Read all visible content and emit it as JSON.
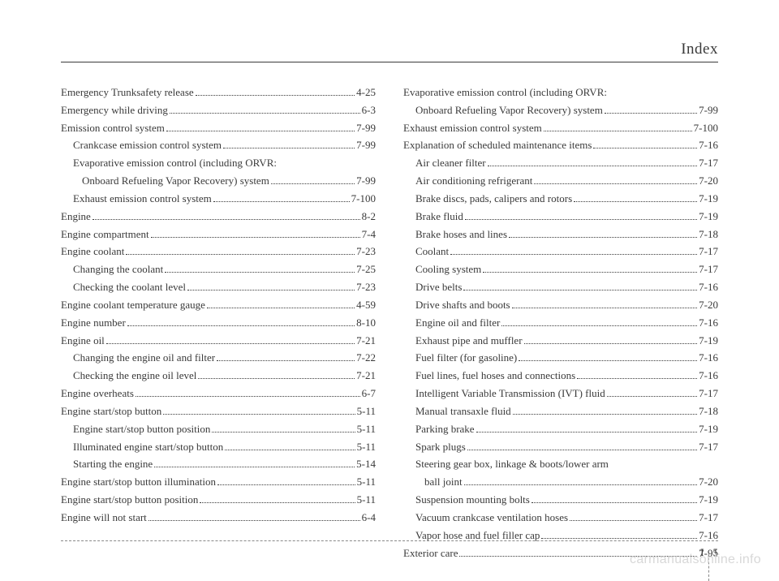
{
  "header": {
    "title": "Index"
  },
  "footer": {
    "section": "I",
    "page": "5"
  },
  "watermark": "carmanualsonline.info",
  "left": [
    {
      "label": "Emergency Trunksafety release",
      "page": "4-25",
      "indent": 0
    },
    {
      "label": "Emergency while driving",
      "page": "6-3",
      "indent": 0
    },
    {
      "label": "Emission control system",
      "page": "7-99",
      "indent": 0
    },
    {
      "label": "Crankcase emission control system",
      "page": "7-99",
      "indent": 1
    },
    {
      "label": "Evaporative emission control (including ORVR:",
      "page": "",
      "indent": 1
    },
    {
      "label": "Onboard Refueling Vapor Recovery) system",
      "page": "7-99",
      "indent": 2
    },
    {
      "label": "Exhaust emission control system",
      "page": "7-100",
      "indent": 1
    },
    {
      "label": "Engine",
      "page": "8-2",
      "indent": 0
    },
    {
      "label": "Engine compartment",
      "page": "7-4",
      "indent": 0
    },
    {
      "label": "Engine coolant",
      "page": "7-23",
      "indent": 0
    },
    {
      "label": "Changing the coolant",
      "page": "7-25",
      "indent": 1
    },
    {
      "label": "Checking the coolant level",
      "page": "7-23",
      "indent": 1
    },
    {
      "label": "Engine coolant temperature gauge",
      "page": "4-59",
      "indent": 0
    },
    {
      "label": "Engine number",
      "page": "8-10",
      "indent": 0
    },
    {
      "label": "Engine oil",
      "page": "7-21",
      "indent": 0
    },
    {
      "label": "Changing the engine oil and filter",
      "page": "7-22",
      "indent": 1
    },
    {
      "label": "Checking the engine oil level",
      "page": "7-21",
      "indent": 1
    },
    {
      "label": "Engine overheats",
      "page": "6-7",
      "indent": 0
    },
    {
      "label": "Engine start/stop button",
      "page": "5-11",
      "indent": 0
    },
    {
      "label": "Engine start/stop button position",
      "page": "5-11",
      "indent": 1
    },
    {
      "label": "Illuminated engine start/stop button",
      "page": "5-11",
      "indent": 1
    },
    {
      "label": "Starting the engine",
      "page": "5-14",
      "indent": 1
    },
    {
      "label": "Engine start/stop button illumination",
      "page": "5-11",
      "indent": 0
    },
    {
      "label": "Engine start/stop button position",
      "page": "5-11",
      "indent": 0
    },
    {
      "label": "Engine will not start",
      "page": "6-4",
      "indent": 0
    }
  ],
  "right": [
    {
      "label": "Evaporative emission control (including ORVR:",
      "page": "",
      "indent": 0
    },
    {
      "label": "Onboard Refueling Vapor Recovery) system",
      "page": "7-99",
      "indent": 1
    },
    {
      "label": "Exhaust emission control system",
      "page": "7-100",
      "indent": 0
    },
    {
      "label": "Explanation of scheduled maintenance items",
      "page": "7-16",
      "indent": 0
    },
    {
      "label": "Air cleaner filter",
      "page": "7-17",
      "indent": 1
    },
    {
      "label": "Air conditioning refrigerant",
      "page": "7-20",
      "indent": 1
    },
    {
      "label": "Brake discs, pads, calipers and rotors",
      "page": "7-19",
      "indent": 1
    },
    {
      "label": "Brake fluid",
      "page": "7-19",
      "indent": 1
    },
    {
      "label": "Brake hoses and lines",
      "page": "7-18",
      "indent": 1
    },
    {
      "label": "Coolant",
      "page": "7-17",
      "indent": 1
    },
    {
      "label": "Cooling system",
      "page": "7-17",
      "indent": 1
    },
    {
      "label": "Drive belts",
      "page": "7-16",
      "indent": 1
    },
    {
      "label": "Drive shafts and boots",
      "page": "7-20",
      "indent": 1
    },
    {
      "label": "Engine oil and filter",
      "page": "7-16",
      "indent": 1
    },
    {
      "label": "Exhaust pipe and muffler",
      "page": "7-19",
      "indent": 1
    },
    {
      "label": "Fuel filter (for gasoline)",
      "page": "7-16",
      "indent": 1
    },
    {
      "label": "Fuel lines, fuel hoses and connections",
      "page": "7-16",
      "indent": 1
    },
    {
      "label": "Intelligent Variable Transmission (IVT) fluid",
      "page": "7-17",
      "indent": 1
    },
    {
      "label": "Manual transaxle fluid",
      "page": "7-18",
      "indent": 1
    },
    {
      "label": "Parking brake",
      "page": "7-19",
      "indent": 1
    },
    {
      "label": "Spark plugs",
      "page": "7-17",
      "indent": 1
    },
    {
      "label": "Steering gear box, linkage & boots/lower arm",
      "page": "",
      "indent": 1
    },
    {
      "label": "ball joint",
      "page": "7-20",
      "indent": 2
    },
    {
      "label": "Suspension mounting bolts",
      "page": "7-19",
      "indent": 1
    },
    {
      "label": "Vacuum crankcase ventilation hoses",
      "page": "7-17",
      "indent": 1
    },
    {
      "label": "Vapor hose and fuel filler cap",
      "page": "7-16",
      "indent": 1
    },
    {
      "label": "Exterior care",
      "page": "7-91",
      "indent": 0
    }
  ]
}
